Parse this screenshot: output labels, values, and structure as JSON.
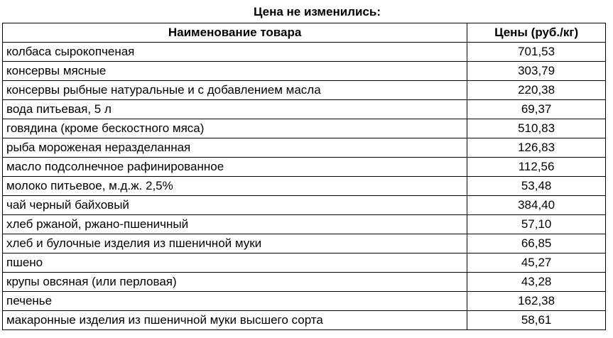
{
  "title": "Цена не изменились:",
  "table": {
    "headers": [
      "Наименование товара",
      "Цены (руб./кг)"
    ],
    "rows": [
      [
        "колбаса сырокопченая",
        "701,53"
      ],
      [
        "консервы мясные",
        "303,79"
      ],
      [
        "консервы рыбные натуральные и с добавлением масла",
        "220,38"
      ],
      [
        "вода питьевая, 5 л",
        "69,37"
      ],
      [
        "говядина (кроме бескостного мяса)",
        "510,83"
      ],
      [
        "рыба мороженая неразделанная",
        "126,83"
      ],
      [
        "масло подсолнечное рафинированное",
        "112,56"
      ],
      [
        "молоко питьевое, м.д.ж. 2,5%",
        "53,48"
      ],
      [
        "чай черный байховый",
        "384,40"
      ],
      [
        "хлеб ржаной, ржано-пшеничный",
        "57,10"
      ],
      [
        "хлеб и булочные изделия из пшеничной муки",
        "66,85"
      ],
      [
        "пшено",
        "45,27"
      ],
      [
        "крупы овсяная (или перловая)",
        "43,28"
      ],
      [
        "печенье",
        "162,38"
      ],
      [
        "макаронные изделия из пшеничной муки высшего сорта",
        "58,61"
      ]
    ]
  }
}
